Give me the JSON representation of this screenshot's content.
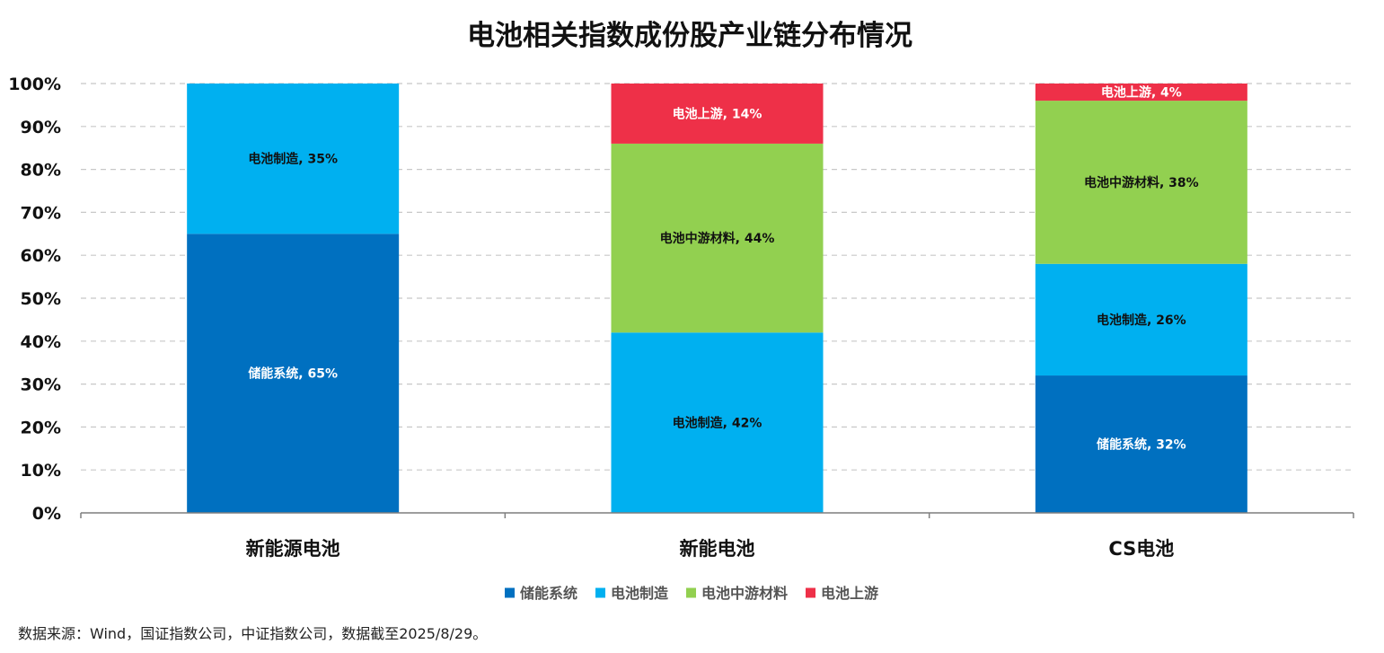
{
  "chart_data": {
    "type": "bar",
    "stacked": true,
    "title": "电池相关指数成份股产业链分布情况",
    "categories": [
      "新能源电池",
      "新能电池",
      "CS电池"
    ],
    "y_ticks": [
      "0%",
      "10%",
      "20%",
      "30%",
      "40%",
      "50%",
      "60%",
      "70%",
      "80%",
      "90%",
      "100%"
    ],
    "ylim": [
      0,
      100
    ],
    "grid": true,
    "legend_position": "bottom",
    "series": [
      {
        "name": "储能系统",
        "color": "#0070C0",
        "label_color": "#ffffff",
        "values": [
          65,
          0,
          32
        ],
        "labels": [
          "储能系统, 65%",
          "",
          "储能系统, 32%"
        ]
      },
      {
        "name": "电池制造",
        "color": "#00B0F0",
        "label_color": "#111111",
        "values": [
          35,
          42,
          26
        ],
        "labels": [
          "电池制造, 35%",
          "电池制造, 42%",
          "电池制造, 26%"
        ]
      },
      {
        "name": "电池中游材料",
        "color": "#92D050",
        "label_color": "#111111",
        "values": [
          0,
          44,
          38
        ],
        "labels": [
          "",
          "电池中游材料, 44%",
          "电池中游材料, 38%"
        ]
      },
      {
        "name": "电池上游",
        "color": "#EE3048",
        "label_color": "#ffffff",
        "values": [
          0,
          14,
          4
        ],
        "labels": [
          "",
          "电池上游, 14%",
          "电池上游, 4%"
        ]
      }
    ]
  },
  "source_note": "数据来源：Wind，国证指数公司，中证指数公司，数据截至2025/8/29。"
}
